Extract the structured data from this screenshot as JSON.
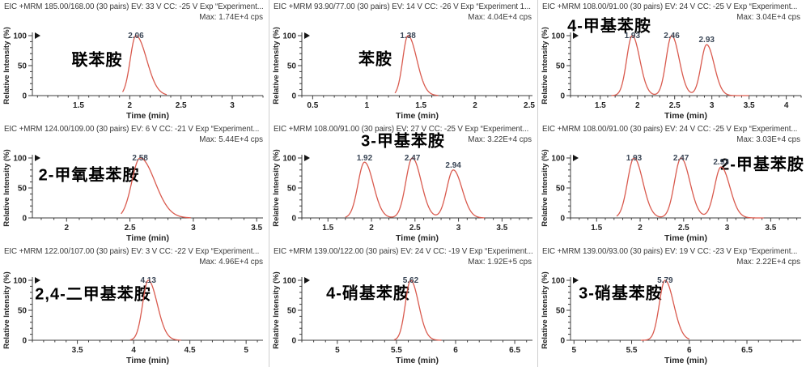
{
  "app": {
    "name": "mrm-chromatogram-grid",
    "rows": 3,
    "cols": 3
  },
  "colors": {
    "background": "#ffffff",
    "trace": "#d95a4e",
    "header_text": "#3b3b3b",
    "axis_line": "#3c3c3c",
    "axis_text": "#262626",
    "peak_label": "#3a4656",
    "compound_label": "#000000",
    "separator": "#cfcfcf",
    "marker": "#151515"
  },
  "chart_data": [
    {
      "type": "line",
      "title": "EIC +MRM 185.00/168.00 (30 pairs) EV: 33 V CC: -25 V Exp “Experiment...",
      "max_label": "Max: 1.74E+4 cps",
      "compound": "联苯胺",
      "compound_pos": {
        "x": 120,
        "y": 72
      },
      "xlabel": "Time (min)",
      "ylabel": "Relative Intensity (%)",
      "xlim": [
        1.05,
        3.3
      ],
      "ylim": [
        0,
        100
      ],
      "xticks": [
        1.5,
        2,
        2.5,
        3
      ],
      "yticks": [
        0,
        50,
        100
      ],
      "x_minor_step": 0.1,
      "y_minor_step": 10,
      "trace_range": [
        1.93,
        2.36
      ],
      "peaks": [
        {
          "rt": 2.06,
          "intensity": 100,
          "label": "2.06",
          "sigma": 0.055,
          "tail": 1.9
        }
      ]
    },
    {
      "type": "line",
      "title": "EIC +MRM 93.90/77.00 (30 pairs) EV: 14 V CC: -26 V Exp “Experiment 1...",
      "max_label": "Max: 4.04E+4 cps",
      "compound": "苯胺",
      "compound_pos": {
        "x": 131,
        "y": 71
      },
      "xlabel": "Time (min)",
      "ylabel": "Relative Intensity (%)",
      "xlim": [
        0.4,
        2.53
      ],
      "ylim": [
        0,
        100
      ],
      "xticks": [
        0.5,
        1,
        1.5,
        2,
        2.5
      ],
      "yticks": [
        0,
        50,
        100
      ],
      "x_minor_step": 0.1,
      "y_minor_step": 10,
      "trace_range": [
        1.26,
        1.66
      ],
      "peaks": [
        {
          "rt": 1.38,
          "intensity": 100,
          "label": "1.38",
          "sigma": 0.048,
          "tail": 1.7
        }
      ]
    },
    {
      "type": "line",
      "title": "EIC +MRM 108.00/91.00 (30 pairs) EV: 24 V CC: -25 V Exp “Experiment...",
      "max_label": "Max: 3.04E+4 cps",
      "compound": "4-甲基苯胺",
      "compound_pos": {
        "x": 88,
        "y": 30
      },
      "xlabel": "Time (min)",
      "ylabel": "Relative Intensity (%)",
      "xlim": [
        1.1,
        4.2
      ],
      "ylim": [
        0,
        100
      ],
      "xticks": [
        1.5,
        2,
        2.5,
        3,
        3.5,
        4
      ],
      "yticks": [
        0,
        50,
        100
      ],
      "x_minor_step": 0.1,
      "y_minor_step": 10,
      "trace_range": [
        1.65,
        3.5
      ],
      "peaks": [
        {
          "rt": 1.93,
          "intensity": 100,
          "label": "1.93",
          "sigma": 0.075,
          "tail": 1.35
        },
        {
          "rt": 2.46,
          "intensity": 100,
          "label": "2.46",
          "sigma": 0.075,
          "tail": 1.35
        },
        {
          "rt": 2.93,
          "intensity": 85,
          "label": "2.93",
          "sigma": 0.075,
          "tail": 1.35
        }
      ]
    },
    {
      "type": "line",
      "title": "EIC +MRM 124.00/109.00 (30 pairs) EV: 6 V CC: -21 V Exp “Experiment...",
      "max_label": "Max: 5.44E+4 cps",
      "compound": "2-甲氧基苯胺",
      "compound_pos": {
        "x": 110,
        "y": 63
      },
      "xlabel": "Time (min)",
      "ylabel": "Relative Intensity (%)",
      "xlim": [
        1.73,
        3.55
      ],
      "ylim": [
        0,
        100
      ],
      "xticks": [
        2,
        2.5,
        3,
        3.5
      ],
      "yticks": [
        0,
        50,
        100
      ],
      "x_minor_step": 0.1,
      "y_minor_step": 10,
      "trace_range": [
        2.43,
        2.98
      ],
      "peaks": [
        {
          "rt": 2.58,
          "intensity": 100,
          "label": "2.58",
          "sigma": 0.065,
          "tail": 1.8
        }
      ]
    },
    {
      "type": "line",
      "title": "EIC +MRM 108.00/91.00 (30 pairs) EV: 27 V CC: -25 V Exp “Experiment...",
      "max_label": "Max: 3.22E+4 cps",
      "compound": "3-甲基苯胺",
      "compound_pos": {
        "x": 165,
        "y": 21
      },
      "xlabel": "Time (min)",
      "ylabel": "Relative Intensity (%)",
      "xlim": [
        1.2,
        3.85
      ],
      "ylim": [
        0,
        100
      ],
      "xticks": [
        1.5,
        2,
        2.5,
        3,
        3.5
      ],
      "yticks": [
        0,
        50,
        100
      ],
      "x_minor_step": 0.1,
      "y_minor_step": 10,
      "trace_range": [
        1.7,
        3.3
      ],
      "peaks": [
        {
          "rt": 1.92,
          "intensity": 93,
          "label": "1.92",
          "sigma": 0.075,
          "tail": 1.35
        },
        {
          "rt": 2.47,
          "intensity": 100,
          "label": "2.47",
          "sigma": 0.075,
          "tail": 1.35
        },
        {
          "rt": 2.94,
          "intensity": 80,
          "label": "2.94",
          "sigma": 0.075,
          "tail": 1.35
        }
      ]
    },
    {
      "type": "line",
      "title": "EIC +MRM 108.00/91.00 (30 pairs) EV: 24 V CC: -25 V Exp “Experiment...",
      "max_label": "Max: 3.03E+4 cps",
      "compound": "2-甲基苯胺",
      "compound_pos": {
        "x": 277,
        "y": 50
      },
      "xlabel": "Time (min)",
      "ylabel": "Relative Intensity (%)",
      "xlim": [
        1.2,
        3.85
      ],
      "ylim": [
        0,
        100
      ],
      "xticks": [
        1.5,
        2,
        2.5,
        3,
        3.5
      ],
      "yticks": [
        0,
        50,
        100
      ],
      "x_minor_step": 0.1,
      "y_minor_step": 10,
      "trace_range": [
        1.73,
        3.42
      ],
      "peaks": [
        {
          "rt": 1.93,
          "intensity": 100,
          "label": "1.93",
          "sigma": 0.075,
          "tail": 1.35
        },
        {
          "rt": 2.47,
          "intensity": 100,
          "label": "2.47",
          "sigma": 0.075,
          "tail": 1.35
        },
        {
          "rt": 2.93,
          "intensity": 85,
          "label": "2.93",
          "sigma": 0.075,
          "tail": 1.35
        }
      ]
    },
    {
      "type": "line",
      "title": "EIC +MRM 122.00/107.00 (30 pairs) EV: 3 V CC: -22 V Exp “Experiment...",
      "max_label": "Max: 4.96E+4 cps",
      "compound": "2,4-二甲基苯胺",
      "compound_pos": {
        "x": 115,
        "y": 59
      },
      "xlabel": "Time (min)",
      "ylabel": "Relative Intensity (%)",
      "xlim": [
        3.1,
        5.15
      ],
      "ylim": [
        0,
        100
      ],
      "xticks": [
        3.5,
        4,
        4.5,
        5
      ],
      "yticks": [
        0,
        50,
        100
      ],
      "x_minor_step": 0.1,
      "y_minor_step": 10,
      "trace_range": [
        3.97,
        4.42
      ],
      "peaks": [
        {
          "rt": 4.13,
          "intensity": 100,
          "label": "4.13",
          "sigma": 0.05,
          "tail": 1.6
        }
      ]
    },
    {
      "type": "line",
      "title": "EIC +MRM 139.00/122.00 (30 pairs) EV: 24 V CC: -19 V Exp “Experiment...",
      "max_label": "Max: 1.92E+5 cps",
      "compound": "4-硝基苯胺",
      "compound_pos": {
        "x": 122,
        "y": 58
      },
      "xlabel": "Time (min)",
      "ylabel": "Relative Intensity (%)",
      "xlim": [
        4.7,
        6.65
      ],
      "ylim": [
        0,
        100
      ],
      "xticks": [
        5,
        5.5,
        6,
        6.5
      ],
      "yticks": [
        0,
        50,
        100
      ],
      "x_minor_step": 0.1,
      "y_minor_step": 10,
      "trace_range": [
        5.48,
        5.88
      ],
      "peaks": [
        {
          "rt": 5.62,
          "intensity": 100,
          "label": "5.62",
          "sigma": 0.045,
          "tail": 1.5
        }
      ]
    },
    {
      "type": "line",
      "title": "EIC +MRM 139.00/93.00 (30 pairs) EV: 19 V CC: -23 V Exp “Experiment...",
      "max_label": "Max: 2.22E+4 cps",
      "compound": "3-硝基苯胺",
      "compound_pos": {
        "x": 102,
        "y": 58
      },
      "xlabel": "Time (min)",
      "ylabel": "Relative Intensity (%)",
      "xlim": [
        4.97,
        6.97
      ],
      "ylim": [
        0,
        100
      ],
      "xticks": [
        5,
        5.5,
        6,
        6.5
      ],
      "yticks": [
        0,
        50,
        100
      ],
      "x_minor_step": 0.1,
      "y_minor_step": 10,
      "trace_range": [
        5.58,
        6.0
      ],
      "peaks": [
        {
          "rt": 5.79,
          "intensity": 100,
          "label": "5.79",
          "sigma": 0.05,
          "tail": 1.5
        }
      ]
    }
  ]
}
